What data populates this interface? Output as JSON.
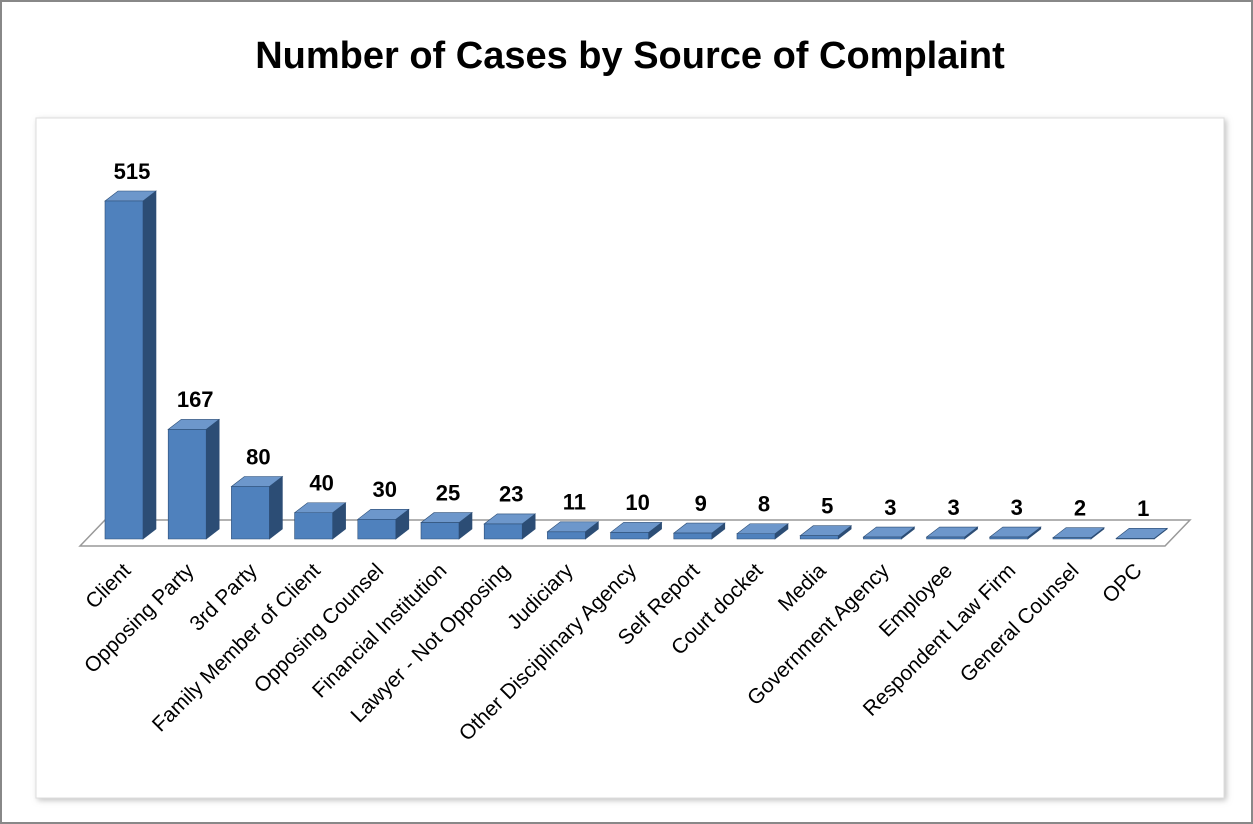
{
  "chart_data": {
    "type": "bar3d",
    "title": "Number of Cases by Source of Complaint",
    "categories": [
      "Client",
      "Opposing Party",
      "3rd Party",
      "Family Member of Client",
      "Opposing Counsel",
      "Financial Institution",
      "Lawyer - Not Opposing",
      "Judiciary",
      "Other Disciplinary Agency",
      "Self Report",
      "Court docket",
      "Media",
      "Government Agency",
      "Employee",
      "Respondent Law Firm",
      "General Counsel",
      "OPC"
    ],
    "values": [
      515,
      167,
      80,
      40,
      30,
      25,
      23,
      11,
      10,
      9,
      8,
      5,
      3,
      3,
      3,
      2,
      1
    ],
    "color": "#4f81bd"
  }
}
